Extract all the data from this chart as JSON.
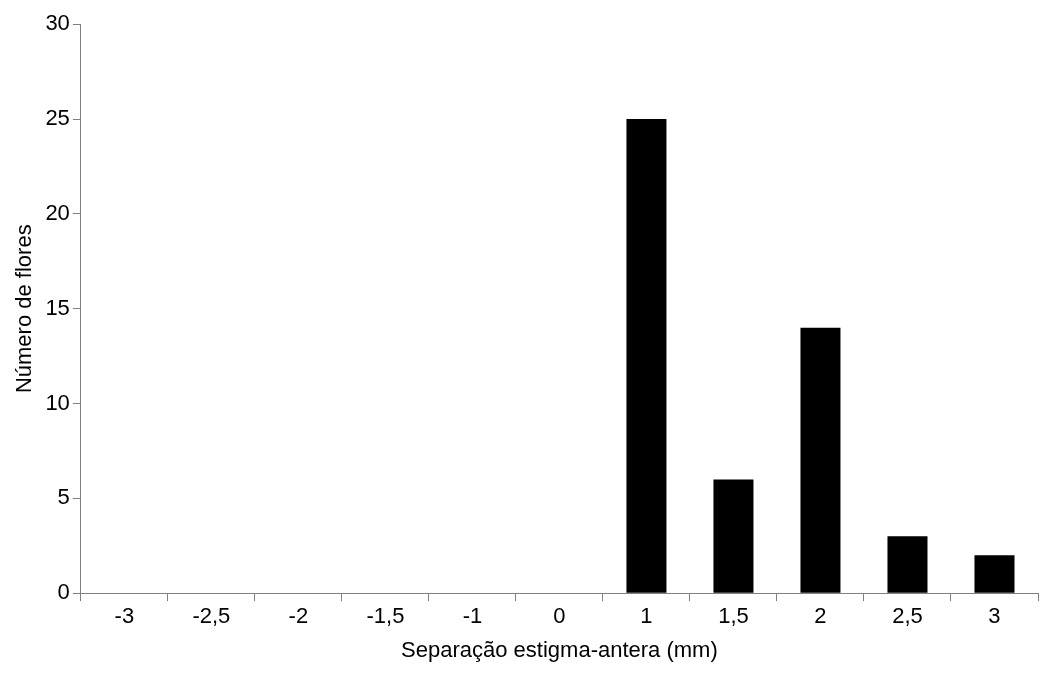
{
  "chart_data": {
    "type": "bar",
    "xlabel": "Separação estigma-antera (mm)",
    "ylabel": "Número de flores",
    "categories": [
      "-3",
      "-2,5",
      "-2",
      "-1,5",
      "-1",
      "0",
      "1",
      "1,5",
      "2",
      "2,5",
      "3"
    ],
    "values": [
      0,
      0,
      0,
      0,
      0,
      0,
      25,
      6,
      14,
      3,
      2
    ],
    "color": "#000000",
    "ylim": [
      0,
      30
    ],
    "yticks": [
      0,
      5,
      10,
      15,
      20,
      25,
      30
    ],
    "grid": false,
    "legend": false
  }
}
